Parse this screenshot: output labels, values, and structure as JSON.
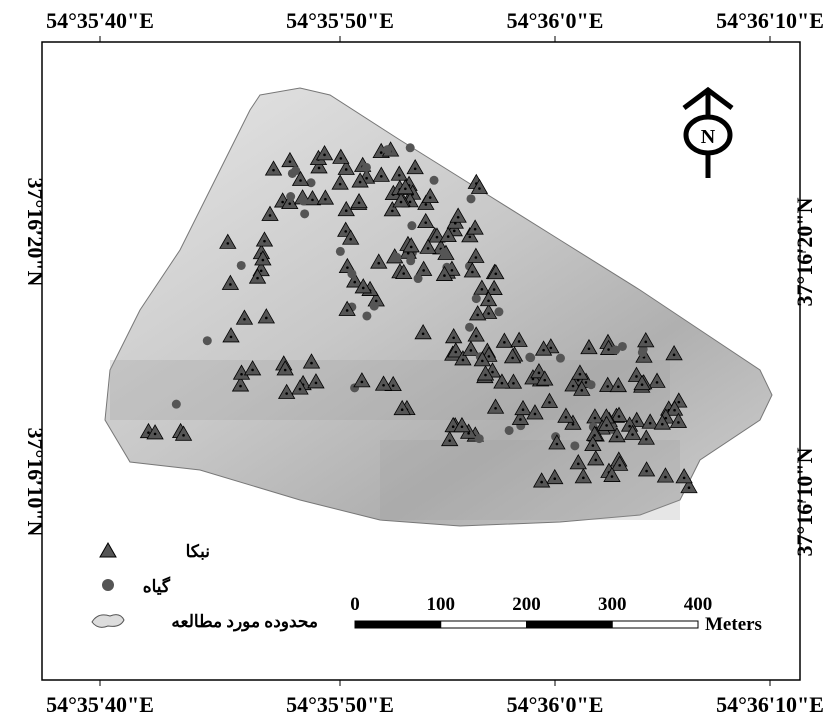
{
  "map": {
    "top_labels": [
      "54°35'40\"E",
      "54°35'50\"E",
      "54°36'0\"E",
      "54°36'10\"E"
    ],
    "bottom_labels": [
      "54°35'40\"E",
      "54°35'50\"E",
      "54°36'0\"E",
      "54°36'10\"E"
    ],
    "left_labels": [
      "37°16'20\"N",
      "37°16'10\"N"
    ],
    "right_labels": [
      "37°16'20\"N",
      "37°16'10\"N"
    ],
    "north": "N",
    "legend": [
      "نبکا",
      "گیاه",
      "محدوده مورد مطالعه"
    ],
    "scale": {
      "labels": [
        0,
        100,
        200,
        300,
        400
      ],
      "unit": "Meters"
    }
  }
}
